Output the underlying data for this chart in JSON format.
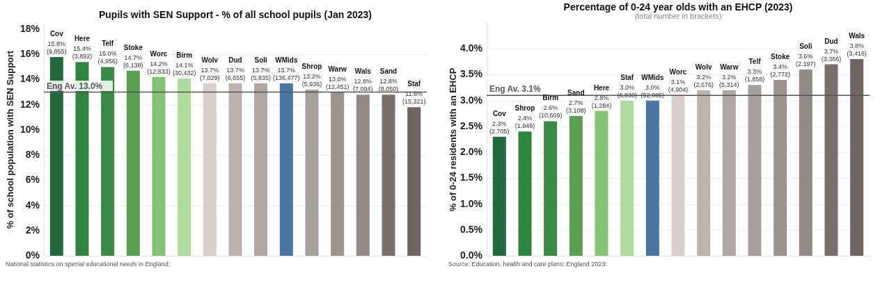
{
  "chart_data": [
    {
      "type": "bar",
      "title": "Pupils with SEN Support - % of all school pupils (Jan 2023)",
      "ylabel": "% of school population with SEN Support",
      "categories": [
        "Cov",
        "Here",
        "Telf",
        "Stoke",
        "Worc",
        "Birm",
        "Wolv",
        "Dud",
        "Soli",
        "WMids",
        "Shrop",
        "Warw",
        "Wals",
        "Sand",
        "Staf"
      ],
      "values": [
        15.8,
        15.4,
        15.0,
        14.7,
        14.2,
        14.1,
        13.7,
        13.7,
        13.7,
        13.7,
        13.2,
        13.0,
        12.8,
        12.8,
        11.8
      ],
      "value_labels": [
        "15.8% (9,855)",
        "15.4% (3,892)",
        "15.0% (4,956)",
        "14.7% (6,138)",
        "14.2% (12,833)",
        "14.1% (30,432)",
        "13.7% (7,029)",
        "13.7% (6,655)",
        "13.7% (5,835)",
        "13.7% (136,477)",
        "13.2% (5,936)",
        "13.0% (12,451)",
        "12.8% (7,094)",
        "12.8% (8,050)",
        "11.8% (15,321)"
      ],
      "colors": [
        "#226b3c",
        "#2e8540",
        "#388a45",
        "#58a050",
        "#82c474",
        "#b0dca0",
        "#d8cfcc",
        "#bcb3ae",
        "#b0a7a3",
        "#4a76a4",
        "#a79f9b",
        "#9c928e",
        "#938a86",
        "#7a6f6b",
        "#6f6461"
      ],
      "ylim": [
        0,
        18.5
      ],
      "yticks": [
        {
          "value": 0,
          "label": "0%"
        },
        {
          "value": 2,
          "label": "2%"
        },
        {
          "value": 4,
          "label": "4%"
        },
        {
          "value": 6,
          "label": "6%"
        },
        {
          "value": 8,
          "label": "8%"
        },
        {
          "value": 10,
          "label": "10%"
        },
        {
          "value": 12,
          "label": "12%"
        },
        {
          "value": 14,
          "label": "14%"
        },
        {
          "value": 16,
          "label": "16%"
        },
        {
          "value": 18,
          "label": "18%"
        }
      ],
      "ref_lines": [
        {
          "axis": "y",
          "value": 13.0,
          "label": "Eng Av. 13.0%",
          "color": "#555555"
        }
      ],
      "grid": "y",
      "tick_labels": "y",
      "legend": false,
      "annotations": [
        "National statistics on special educational needs in England:"
      ]
    },
    {
      "type": "bar",
      "title": "Percentage of 0-24 year olds with an EHCP (2023)",
      "subtitle": "(total number in brackets)",
      "ylabel": "% of 0-24 residents with an EHCP",
      "categories": [
        "Cov",
        "Shrop",
        "Birm",
        "Sand",
        "Here",
        "Staf",
        "WMids",
        "Worc",
        "Wolv",
        "Warw",
        "Telf",
        "Stoke",
        "Soli",
        "Dud",
        "Wals"
      ],
      "values": [
        2.3,
        2.4,
        2.6,
        2.7,
        2.8,
        3.0,
        3.0,
        3.1,
        3.2,
        3.2,
        3.3,
        3.4,
        3.6,
        3.7,
        3.8
      ],
      "value_labels": [
        "2.3% (2,705)",
        "2.4% (1,946)",
        "2.6% (10,609)",
        "2.7% (3,108)",
        "2.8% (1,284)",
        "3.0% (6,830)",
        "3.0% (52,985)",
        "3.1% (4,904)",
        "3.2% (2,676)",
        "3.2% (5,314)",
        "3.3% (1,858)",
        "3.4% (2,772)",
        "3.6% (2,197)",
        "3.7% (3,366)",
        "3.8% (3,416)"
      ],
      "colors": [
        "#226b3c",
        "#2e8540",
        "#388a45",
        "#58a050",
        "#82c474",
        "#b0dca0",
        "#4a76a4",
        "#d8cfcc",
        "#bcb3ae",
        "#b0a7a3",
        "#a79f9b",
        "#9c928e",
        "#938a86",
        "#7a6f6b",
        "#6f6461"
      ],
      "ylim": [
        0,
        4.5
      ],
      "yticks": [
        {
          "value": 0,
          "label": "0.0%"
        },
        {
          "value": 0.5,
          "label": "0.5%"
        },
        {
          "value": 1,
          "label": "1.0%"
        },
        {
          "value": 1.5,
          "label": "1.5%"
        },
        {
          "value": 2,
          "label": "2.0%"
        },
        {
          "value": 2.5,
          "label": "2.5%"
        },
        {
          "value": 3,
          "label": "3.0%"
        },
        {
          "value": 3.5,
          "label": "3.5%"
        },
        {
          "value": 4,
          "label": "4.0%"
        }
      ],
      "ref_lines": [
        {
          "axis": "y",
          "value": 3.1,
          "label": "Eng Av. 3.1%",
          "color": "#555555"
        }
      ],
      "grid": "y",
      "tick_labels": "y",
      "legend": false,
      "annotations": [
        "Source: Education, health and care plans: England 2023:"
      ]
    }
  ]
}
